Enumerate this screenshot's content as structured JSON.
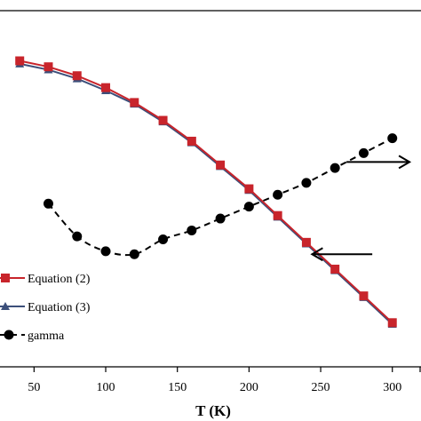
{
  "chart_data": {
    "type": "line",
    "xlabel": "T (K)",
    "xlim": [
      25,
      320
    ],
    "x_ticks": [
      50,
      100,
      150,
      200,
      250,
      300
    ],
    "left_ylim": [
      0,
      1
    ],
    "right_ylim": [
      0,
      1
    ],
    "grid": false,
    "legend_position": "bottom-left",
    "series": [
      {
        "name": "Equation (2)",
        "axis": "left",
        "color": "#c8242b",
        "line_style": "solid",
        "marker": "square",
        "x": [
          40,
          60,
          80,
          100,
          120,
          140,
          160,
          180,
          200,
          220,
          240,
          260,
          280,
          300
        ],
        "y": [
          0.9,
          0.88,
          0.85,
          0.81,
          0.76,
          0.7,
          0.63,
          0.55,
          0.47,
          0.38,
          0.29,
          0.2,
          0.11,
          0.02
        ]
      },
      {
        "name": "Equation (3)",
        "axis": "left",
        "color": "#3c4f7a",
        "line_style": "solid",
        "marker": "triangle",
        "x": [
          40,
          60,
          80,
          100,
          120,
          140,
          160,
          180,
          200,
          220,
          240,
          260,
          280,
          300
        ],
        "y": [
          0.89,
          0.87,
          0.84,
          0.8,
          0.755,
          0.695,
          0.625,
          0.545,
          0.465,
          0.375,
          0.285,
          0.195,
          0.105,
          0.015
        ]
      },
      {
        "name": "gamma",
        "axis": "right",
        "color": "#000000",
        "line_style": "dashed",
        "marker": "circle",
        "x": [
          60,
          80,
          100,
          120,
          140,
          160,
          180,
          200,
          220,
          240,
          260,
          280,
          300
        ],
        "y": [
          0.42,
          0.31,
          0.26,
          0.25,
          0.3,
          0.33,
          0.37,
          0.41,
          0.45,
          0.49,
          0.54,
          0.59,
          0.64
        ]
      }
    ],
    "annotations": [
      {
        "type": "arrow",
        "direction": "right",
        "points_to": "right axis",
        "x_from": 268,
        "x_to": 312,
        "y": 0.56
      },
      {
        "type": "arrow",
        "direction": "left",
        "points_to": "left axis",
        "x_from": 286,
        "x_to": 244,
        "y": 0.25
      }
    ]
  }
}
